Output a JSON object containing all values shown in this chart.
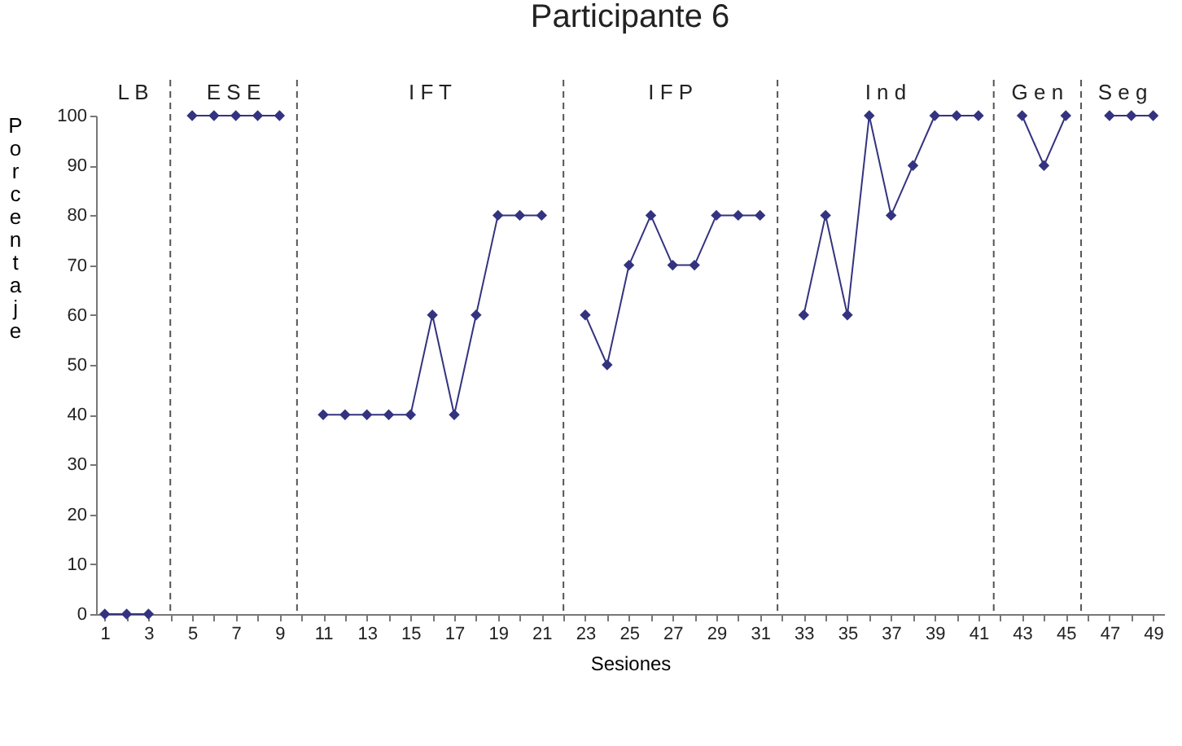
{
  "chart_data": {
    "type": "line",
    "title": "Participante  6",
    "xlabel": "Sesiones",
    "ylabel": "Porcentaje",
    "x": [
      1,
      2,
      3,
      4,
      5,
      6,
      7,
      8,
      9,
      10,
      11,
      12,
      13,
      14,
      15,
      16,
      17,
      18,
      19,
      20,
      21,
      22,
      23,
      24,
      25,
      26,
      27,
      28,
      29,
      30,
      31,
      32,
      33,
      34,
      35,
      36,
      37,
      38,
      39,
      40,
      41,
      42,
      43,
      44,
      45,
      46,
      47,
      48,
      49
    ],
    "series": [
      {
        "color": "#333380",
        "values": [
          0,
          0,
          0,
          null,
          100,
          100,
          100,
          100,
          100,
          null,
          40,
          40,
          40,
          40,
          40,
          60,
          40,
          60,
          80,
          80,
          80,
          null,
          60,
          50,
          70,
          80,
          70,
          70,
          80,
          80,
          80,
          null,
          60,
          80,
          60,
          100,
          80,
          90,
          100,
          100,
          100,
          null,
          100,
          90,
          100,
          null,
          100,
          100,
          100
        ]
      }
    ],
    "marker": "diamond",
    "line_style": "solid",
    "grid": false,
    "legend": false,
    "xlim": [
      0.6,
      49.5
    ],
    "ylim": [
      0,
      100
    ],
    "xticks": [
      1,
      {
        "value": 2,
        "label": null
      },
      3,
      {
        "value": 4,
        "label": null
      },
      5,
      {
        "value": 6,
        "label": null
      },
      7,
      {
        "value": 8,
        "label": null
      },
      9,
      {
        "value": 10,
        "label": null
      },
      11,
      {
        "value": 12,
        "label": null
      },
      13,
      {
        "value": 14,
        "label": null
      },
      15,
      {
        "value": 16,
        "label": null
      },
      17,
      {
        "value": 18,
        "label": null
      },
      19,
      {
        "value": 20,
        "label": null
      },
      21,
      {
        "value": 22,
        "label": null
      },
      23,
      {
        "value": 24,
        "label": null
      },
      25,
      {
        "value": 26,
        "label": null
      },
      27,
      {
        "value": 28,
        "label": null
      },
      29,
      {
        "value": 30,
        "label": null
      },
      31,
      {
        "value": 32,
        "label": null
      },
      33,
      {
        "value": 34,
        "label": null
      },
      35,
      {
        "value": 36,
        "label": null
      },
      37,
      {
        "value": 38,
        "label": null
      },
      39,
      {
        "value": 40,
        "label": null
      },
      41,
      {
        "value": 42,
        "label": null
      },
      43,
      {
        "value": 44,
        "label": null
      },
      45,
      {
        "value": 46,
        "label": null
      },
      47,
      {
        "value": 48,
        "label": null
      },
      49
    ],
    "yticks": [
      0,
      10,
      20,
      30,
      40,
      50,
      60,
      70,
      80,
      90,
      100
    ],
    "ref_lines": [
      {
        "axis": "x",
        "value": 4,
        "line_style": "dashed",
        "color": "#555555"
      },
      {
        "axis": "x",
        "value": 9.8,
        "line_style": "dashed",
        "color": "#555555"
      },
      {
        "axis": "x",
        "value": 22,
        "line_style": "dashed",
        "color": "#555555"
      },
      {
        "axis": "x",
        "value": 31.8,
        "line_style": "dashed",
        "color": "#555555"
      },
      {
        "axis": "x",
        "value": 41.7,
        "line_style": "dashed",
        "color": "#555555"
      },
      {
        "axis": "x",
        "value": 45.7,
        "line_style": "dashed",
        "color": "#555555"
      }
    ],
    "annotations": [
      "L B",
      "E S E",
      "I F T",
      "I F P",
      "I n d",
      "G e n",
      "S e g"
    ]
  }
}
